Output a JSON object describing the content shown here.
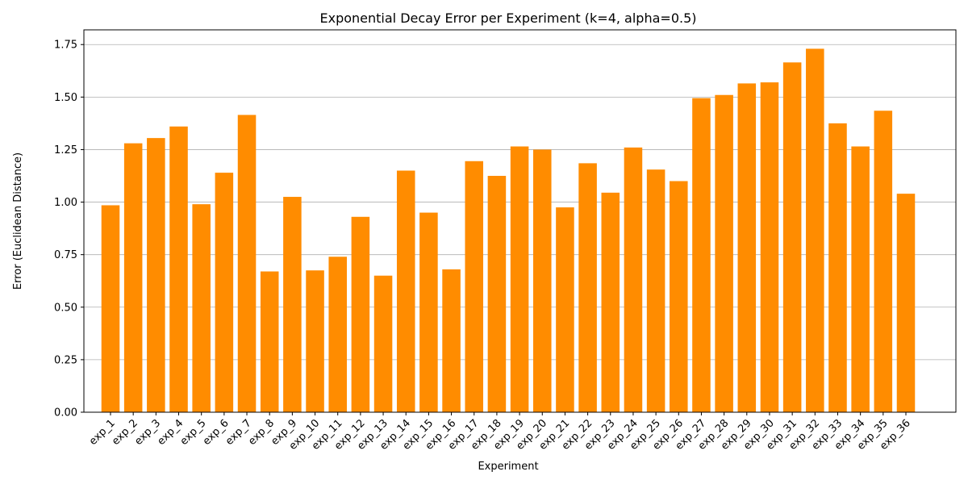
{
  "chart_data": {
    "type": "bar",
    "title": "Exponential Decay Error per Experiment (k=4, alpha=0.5)",
    "xlabel": "Experiment",
    "ylabel": "Error (Euclidean Distance)",
    "ylim": [
      0,
      1.82
    ],
    "yticks": [
      "0.00",
      "0.25",
      "0.50",
      "0.75",
      "1.00",
      "1.25",
      "1.50",
      "1.75"
    ],
    "grid": "y-axis",
    "bar_color": "#ff8c00",
    "categories": [
      "exp_1",
      "exp_2",
      "exp_3",
      "exp_4",
      "exp_5",
      "exp_6",
      "exp_7",
      "exp_8",
      "exp_9",
      "exp_10",
      "exp_11",
      "exp_12",
      "exp_13",
      "exp_14",
      "exp_15",
      "exp_16",
      "exp_17",
      "exp_18",
      "exp_19",
      "exp_20",
      "exp_21",
      "exp_22",
      "exp_23",
      "exp_24",
      "exp_25",
      "exp_26",
      "exp_27",
      "exp_28",
      "exp_29",
      "exp_30",
      "exp_31",
      "exp_32",
      "exp_33",
      "exp_34",
      "exp_35",
      "exp_36"
    ],
    "values": [
      0.985,
      1.28,
      1.305,
      1.36,
      0.99,
      1.14,
      1.415,
      0.67,
      1.025,
      0.675,
      0.74,
      0.93,
      0.65,
      1.15,
      0.95,
      0.68,
      1.195,
      1.125,
      1.265,
      1.25,
      0.975,
      1.185,
      1.045,
      1.26,
      1.155,
      1.1,
      1.495,
      1.51,
      1.565,
      1.57,
      1.665,
      1.73,
      1.375,
      1.265,
      1.435,
      1.04
    ]
  }
}
